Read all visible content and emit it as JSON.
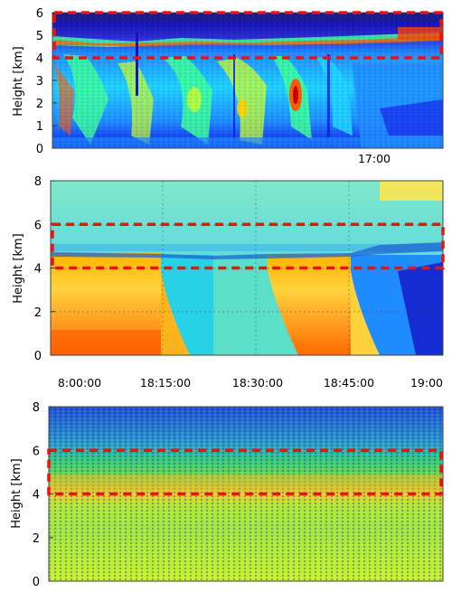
{
  "chart_data": [
    {
      "type": "heatmap",
      "ylabel": "Height [km]",
      "yticks": [
        "0",
        "1",
        "2",
        "3",
        "4",
        "5",
        "6"
      ],
      "ylim": [
        0,
        6
      ],
      "xticks": [
        "17:00"
      ],
      "highlight": {
        "y_bottom_km": 4,
        "y_top_km": 6
      },
      "grid": false
    },
    {
      "type": "heatmap",
      "ylabel": "Height [km]",
      "yticks": [
        "0",
        "2",
        "4",
        "6",
        "8"
      ],
      "ylim": [
        0,
        8
      ],
      "xticks": [
        "8:00:00",
        "18:15:00",
        "18:30:00",
        "18:45:00",
        "19:00"
      ],
      "highlight": {
        "y_bottom_km": 4,
        "y_top_km": 6
      },
      "grid": true
    },
    {
      "type": "heatmap",
      "ylabel": "Height [km]",
      "yticks": [
        "0",
        "2",
        "4",
        "6",
        "8"
      ],
      "ylim": [
        0,
        8
      ],
      "xticks": [],
      "highlight": {
        "y_bottom_km": 4,
        "y_top_km": 6
      },
      "grid": false
    }
  ],
  "colors": {
    "box": "#ee1111",
    "scale": [
      "#0a0a8c",
      "#1414e6",
      "#1e8cff",
      "#1ed2ff",
      "#3cff96",
      "#c8ff28",
      "#ffd200",
      "#ff5a00",
      "#c80000"
    ]
  }
}
